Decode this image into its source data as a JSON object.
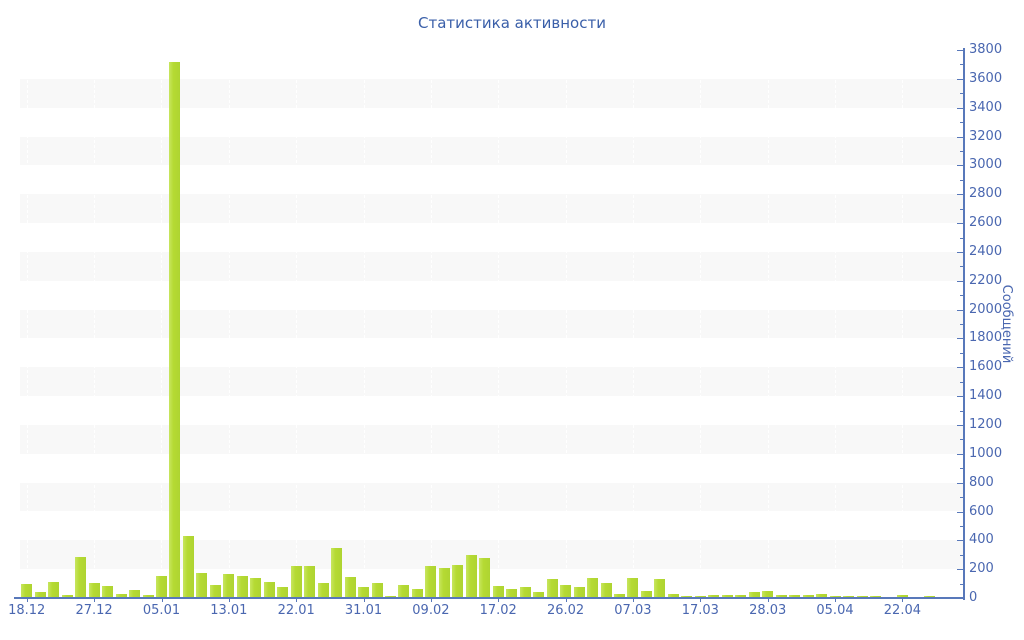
{
  "title": "Статистика активности",
  "colors": {
    "bar": "#b5da33",
    "bar_highlight": "#c7e65f",
    "axis_line": "#5878ba",
    "tick_label": "#4a67b0",
    "title_text": "#3a5fa9",
    "band_gray": "#f8f8f8",
    "background": "#ffffff"
  },
  "chart_data": {
    "type": "bar",
    "title": "Статистика активности",
    "xlabel": "",
    "ylabel": "Сообщений",
    "ylim": [
      0,
      3800
    ],
    "y_tick_step": 200,
    "y_minor_tick_step": 100,
    "legend": "none",
    "grid": "alternating horizontal bands every 200 units; faint dashed vertical lines at labeled dates",
    "x_tick_labels": [
      "18.12",
      "27.12",
      "05.01",
      "13.01",
      "22.01",
      "31.01",
      "09.02",
      "17.02",
      "26.02",
      "07.03",
      "17.03",
      "28.03",
      "05.04",
      "22.04"
    ],
    "x_label_every_n_bars": 5,
    "values": [
      95,
      44,
      113,
      21,
      282,
      106,
      83,
      28,
      55,
      19,
      155,
      3717,
      430,
      176,
      90,
      164,
      155,
      141,
      109,
      76,
      224,
      220,
      104,
      349,
      148,
      78,
      102,
      16,
      90,
      60,
      224,
      206,
      227,
      298,
      275,
      83,
      60,
      78,
      44,
      130,
      90,
      78,
      137,
      102,
      28,
      137,
      49,
      130,
      25,
      14,
      14,
      18,
      23,
      18,
      42,
      49,
      21,
      21,
      18,
      28,
      16,
      12,
      12,
      12,
      9,
      21,
      9,
      14,
      9,
      9
    ]
  }
}
